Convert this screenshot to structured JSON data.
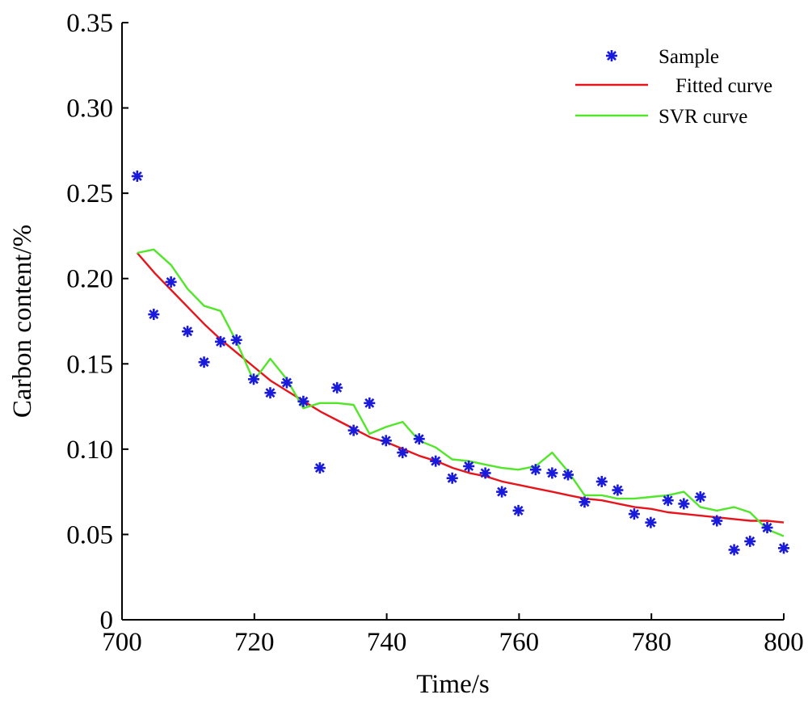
{
  "chart_data": {
    "type": "scatter",
    "xlabel": "Time/s",
    "ylabel": "Carbon content/%",
    "xlim": [
      700,
      800
    ],
    "ylim": [
      0,
      0.35
    ],
    "x_ticks": [
      "700",
      "720",
      "740",
      "760",
      "780",
      "800"
    ],
    "y_ticks": [
      "0",
      "0.05",
      "0.10",
      "0.15",
      "0.20",
      "0.25",
      "0.30",
      "0.35"
    ],
    "grid": false,
    "legend_position": "top-right",
    "series": [
      {
        "name": "Sample",
        "kind": "scatter",
        "marker": "asterisk",
        "color": "#1a1adb",
        "points": [
          [
            702.3,
            0.26
          ],
          [
            704.8,
            0.179
          ],
          [
            707.4,
            0.198
          ],
          [
            709.9,
            0.169
          ],
          [
            712.4,
            0.151
          ],
          [
            714.9,
            0.163
          ],
          [
            717.3,
            0.164
          ],
          [
            719.9,
            0.141
          ],
          [
            722.4,
            0.133
          ],
          [
            724.9,
            0.139
          ],
          [
            727.4,
            0.128
          ],
          [
            729.9,
            0.089
          ],
          [
            732.5,
            0.136
          ],
          [
            735.0,
            0.111
          ],
          [
            737.4,
            0.127
          ],
          [
            739.9,
            0.105
          ],
          [
            742.4,
            0.098
          ],
          [
            744.9,
            0.106
          ],
          [
            747.4,
            0.093
          ],
          [
            749.9,
            0.083
          ],
          [
            752.4,
            0.09
          ],
          [
            754.9,
            0.086
          ],
          [
            757.4,
            0.075
          ],
          [
            759.9,
            0.064
          ],
          [
            762.5,
            0.088
          ],
          [
            765.0,
            0.086
          ],
          [
            767.4,
            0.085
          ],
          [
            769.9,
            0.069
          ],
          [
            772.5,
            0.081
          ],
          [
            774.9,
            0.076
          ],
          [
            777.4,
            0.062
          ],
          [
            779.9,
            0.057
          ],
          [
            782.5,
            0.07
          ],
          [
            784.9,
            0.068
          ],
          [
            787.4,
            0.072
          ],
          [
            789.9,
            0.058
          ],
          [
            792.5,
            0.041
          ],
          [
            794.9,
            0.046
          ],
          [
            797.5,
            0.054
          ],
          [
            800.0,
            0.042
          ]
        ]
      },
      {
        "name": "Fitted curve",
        "kind": "line",
        "color": "#e8141c",
        "points": [
          [
            702.3,
            0.215
          ],
          [
            705.0,
            0.203
          ],
          [
            707.5,
            0.193
          ],
          [
            710.0,
            0.183
          ],
          [
            712.5,
            0.173
          ],
          [
            715.0,
            0.164
          ],
          [
            717.5,
            0.156
          ],
          [
            720.0,
            0.148
          ],
          [
            722.5,
            0.14
          ],
          [
            725.0,
            0.134
          ],
          [
            727.5,
            0.128
          ],
          [
            730.0,
            0.122
          ],
          [
            732.5,
            0.117
          ],
          [
            735.0,
            0.112
          ],
          [
            737.5,
            0.107
          ],
          [
            740.0,
            0.104
          ],
          [
            742.5,
            0.1
          ],
          [
            745.0,
            0.096
          ],
          [
            747.5,
            0.093
          ],
          [
            750.0,
            0.089
          ],
          [
            752.5,
            0.086
          ],
          [
            755.0,
            0.084
          ],
          [
            757.5,
            0.081
          ],
          [
            760.0,
            0.079
          ],
          [
            762.5,
            0.077
          ],
          [
            765.0,
            0.075
          ],
          [
            767.5,
            0.073
          ],
          [
            770.0,
            0.071
          ],
          [
            772.5,
            0.07
          ],
          [
            775.0,
            0.068
          ],
          [
            777.5,
            0.066
          ],
          [
            780.0,
            0.065
          ],
          [
            782.5,
            0.063
          ],
          [
            785.0,
            0.062
          ],
          [
            787.5,
            0.061
          ],
          [
            790.0,
            0.06
          ],
          [
            792.5,
            0.059
          ],
          [
            795.0,
            0.058
          ],
          [
            797.5,
            0.058
          ],
          [
            800.0,
            0.057
          ]
        ]
      },
      {
        "name": "SVR curve",
        "kind": "line",
        "color": "#52e62a",
        "points": [
          [
            702.3,
            0.215
          ],
          [
            704.8,
            0.217
          ],
          [
            707.4,
            0.208
          ],
          [
            709.9,
            0.194
          ],
          [
            712.4,
            0.184
          ],
          [
            714.9,
            0.181
          ],
          [
            717.3,
            0.163
          ],
          [
            719.9,
            0.14
          ],
          [
            722.4,
            0.153
          ],
          [
            724.9,
            0.141
          ],
          [
            727.4,
            0.124
          ],
          [
            729.9,
            0.127
          ],
          [
            732.5,
            0.127
          ],
          [
            735.0,
            0.126
          ],
          [
            737.4,
            0.109
          ],
          [
            739.9,
            0.113
          ],
          [
            742.4,
            0.116
          ],
          [
            744.9,
            0.105
          ],
          [
            747.4,
            0.101
          ],
          [
            749.9,
            0.094
          ],
          [
            752.4,
            0.093
          ],
          [
            754.9,
            0.091
          ],
          [
            757.4,
            0.089
          ],
          [
            759.9,
            0.088
          ],
          [
            762.5,
            0.09
          ],
          [
            765.0,
            0.098
          ],
          [
            767.4,
            0.087
          ],
          [
            769.9,
            0.073
          ],
          [
            772.5,
            0.073
          ],
          [
            774.9,
            0.071
          ],
          [
            777.4,
            0.071
          ],
          [
            779.9,
            0.072
          ],
          [
            782.5,
            0.073
          ],
          [
            784.9,
            0.075
          ],
          [
            787.4,
            0.066
          ],
          [
            789.9,
            0.064
          ],
          [
            792.5,
            0.066
          ],
          [
            794.9,
            0.063
          ],
          [
            797.5,
            0.053
          ],
          [
            800.0,
            0.049
          ]
        ]
      }
    ]
  }
}
